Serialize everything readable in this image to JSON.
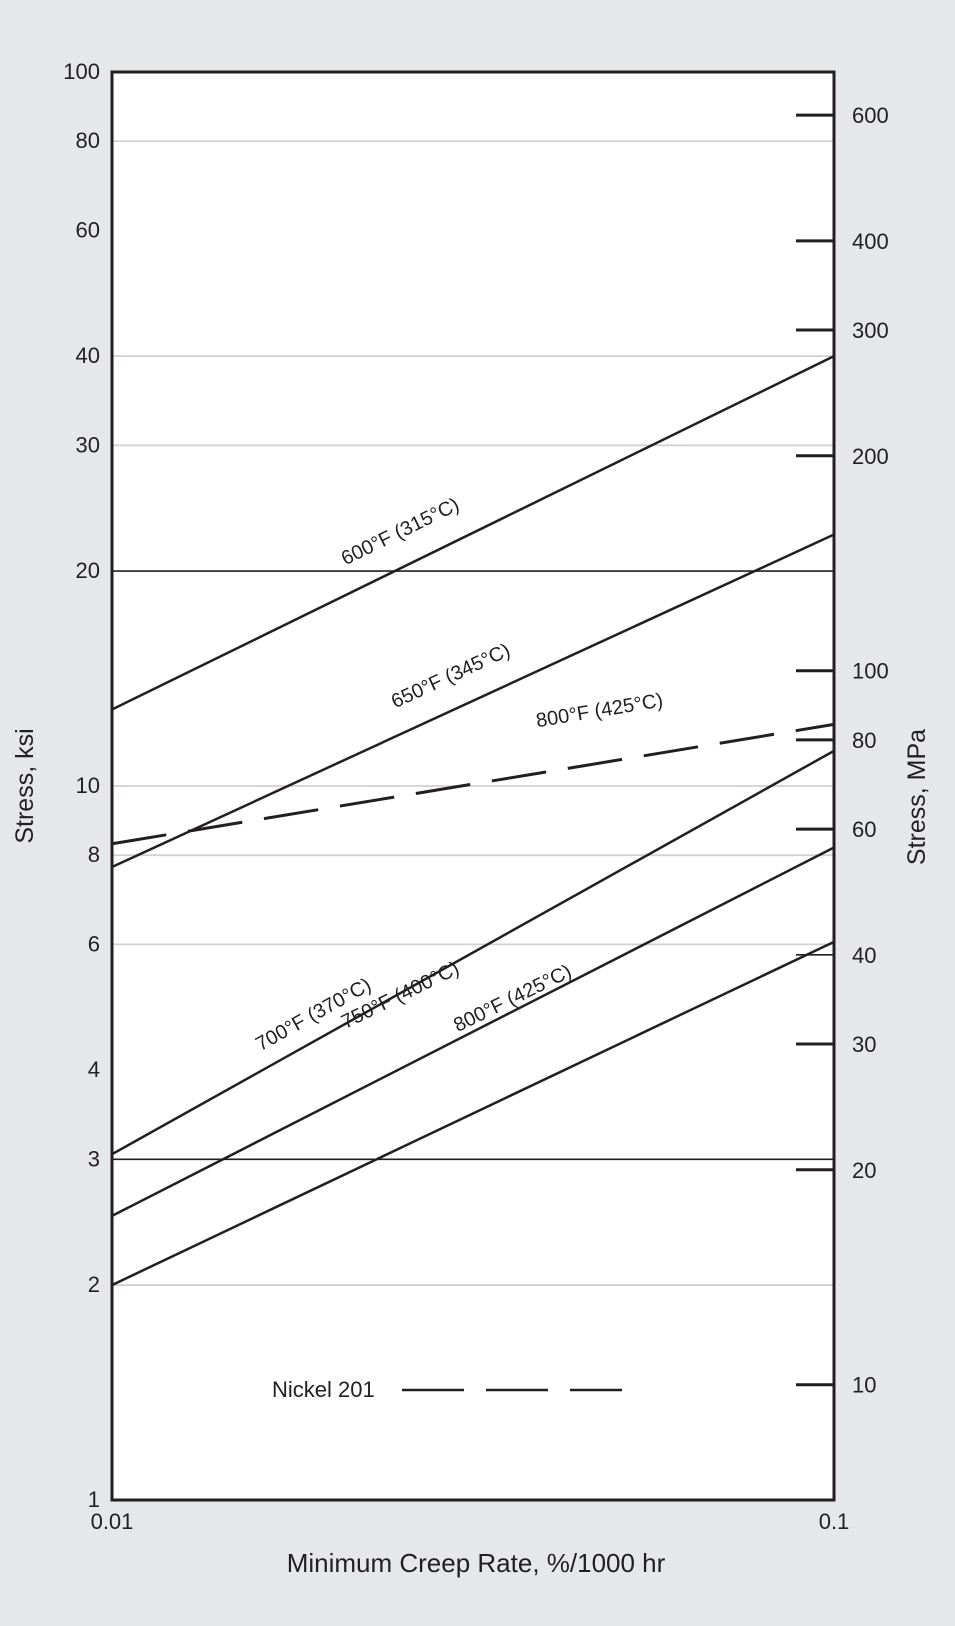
{
  "chart_data": {
    "type": "line",
    "x_scale": "log",
    "y_scale": "log",
    "xlabel": "Minimum Creep Rate, %/1000 hr",
    "ylabel": "Stress, ksi",
    "ylabel_right": "Stress, MPa",
    "xlim": [
      0.01,
      0.1
    ],
    "ylim": [
      1,
      100
    ],
    "x_ticks": [
      {
        "value": 0.01,
        "label": "0.01"
      },
      {
        "value": 0.1,
        "label": "0.1"
      }
    ],
    "y_ticks": [
      {
        "value": 1,
        "label": "1"
      },
      {
        "value": 2,
        "label": "2"
      },
      {
        "value": 3,
        "label": "3"
      },
      {
        "value": 4,
        "label": "4"
      },
      {
        "value": 6,
        "label": "6"
      },
      {
        "value": 8,
        "label": "8"
      },
      {
        "value": 10,
        "label": "10"
      },
      {
        "value": 20,
        "label": "20"
      },
      {
        "value": 30,
        "label": "30"
      },
      {
        "value": 40,
        "label": "40"
      },
      {
        "value": 60,
        "label": "60"
      },
      {
        "value": 80,
        "label": "80"
      },
      {
        "value": 100,
        "label": "100"
      }
    ],
    "y_ticks_right": [
      {
        "value": 10,
        "label": "10"
      },
      {
        "value": 20,
        "label": "20"
      },
      {
        "value": 30,
        "label": "30"
      },
      {
        "value": 40,
        "label": "40"
      },
      {
        "value": 60,
        "label": "60"
      },
      {
        "value": 80,
        "label": "80"
      },
      {
        "value": 100,
        "label": "100"
      },
      {
        "value": 200,
        "label": "200"
      },
      {
        "value": 300,
        "label": "300"
      },
      {
        "value": 400,
        "label": "400"
      },
      {
        "value": 600,
        "label": "600"
      }
    ],
    "ksi_to_mpa": 6.895,
    "horizontal_gridlines": [
      {
        "value": 2,
        "style": "light"
      },
      {
        "value": 3,
        "style": "dark"
      },
      {
        "value": 6,
        "style": "light"
      },
      {
        "value": 8,
        "style": "light"
      },
      {
        "value": 10,
        "style": "light"
      },
      {
        "value": 20,
        "style": "dark"
      },
      {
        "value": 30,
        "style": "light"
      },
      {
        "value": 40,
        "style": "light"
      },
      {
        "value": 80,
        "style": "light"
      }
    ],
    "series": [
      {
        "name": "600°F (315°C)",
        "style": "solid",
        "x": [
          0.01,
          0.1
        ],
        "y": [
          12.8,
          40.0
        ]
      },
      {
        "name": "650°F (345°C)",
        "style": "solid",
        "x": [
          0.01,
          0.1
        ],
        "y": [
          7.7,
          22.5
        ]
      },
      {
        "name": "800°F (425°C)",
        "style": "dashed",
        "x": [
          0.01,
          0.1
        ],
        "y": [
          8.3,
          12.2
        ]
      },
      {
        "name": "700°F (370°C)",
        "style": "solid",
        "x": [
          0.01,
          0.1
        ],
        "y": [
          3.05,
          11.2
        ]
      },
      {
        "name": "750°F (400°C)",
        "style": "solid",
        "x": [
          0.01,
          0.1
        ],
        "y": [
          2.5,
          8.2
        ]
      },
      {
        "name": "800°F (425°C)",
        "style": "solid",
        "x": [
          0.01,
          0.1
        ],
        "y": [
          2.0,
          6.05
        ]
      }
    ],
    "series_labels": [
      {
        "text": "600°F (315°C)",
        "x": 0.0253,
        "y": 22.3
      },
      {
        "text": "650°F (345°C)",
        "x": 0.0297,
        "y": 14.0
      },
      {
        "text": "800°F (425°C)",
        "x": 0.0475,
        "y": 12.5
      },
      {
        "text": "700°F (370°C)",
        "x": 0.0192,
        "y": 4.7
      },
      {
        "text": "750°F (400°C)",
        "x": 0.0253,
        "y": 5.0
      },
      {
        "text": "800°F (425°C)",
        "x": 0.0362,
        "y": 4.95
      }
    ],
    "legend": {
      "label": "Nickel 201",
      "style": "dashed",
      "position": "bottom-left"
    }
  }
}
